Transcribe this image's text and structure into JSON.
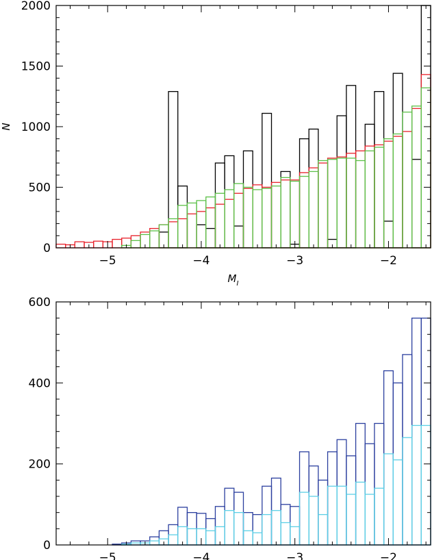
{
  "chart_data": [
    {
      "type": "bar",
      "style": "step-histogram",
      "title": "",
      "xlabel": "M",
      "xlabel_sub": "I",
      "ylabel": "N",
      "xlim": [
        -5.55,
        -1.55
      ],
      "ylim": [
        0,
        2000
      ],
      "xticks": [
        -5,
        -4,
        -3,
        -2
      ],
      "xtick_labels": [
        "−5",
        "−4",
        "−3",
        "−2"
      ],
      "yticks": [
        0,
        500,
        1000,
        1500,
        2000
      ],
      "ytick_labels": [
        "0",
        "500",
        "1000",
        "1500",
        "2000"
      ],
      "bin_edges_start": -5.55,
      "bin_width": 0.1,
      "series": [
        {
          "color": "#000000",
          "values": [
            0,
            0,
            0,
            0,
            0,
            0,
            0,
            0,
            0,
            0,
            0,
            130,
            1290,
            510,
            0,
            190,
            160,
            700,
            760,
            180,
            800,
            0,
            1110,
            0,
            630,
            30,
            900,
            980,
            0,
            70,
            1090,
            1340,
            0,
            1020,
            1290,
            220,
            1440,
            0,
            730,
            2000
          ]
        },
        {
          "color": "#e8202a",
          "values": [
            30,
            25,
            50,
            45,
            55,
            50,
            70,
            80,
            100,
            130,
            160,
            190,
            215,
            240,
            280,
            300,
            330,
            360,
            400,
            450,
            490,
            520,
            500,
            540,
            560,
            560,
            620,
            660,
            700,
            740,
            750,
            780,
            800,
            840,
            850,
            880,
            920,
            960,
            1150,
            1430
          ]
        },
        {
          "color": "#5cc048",
          "values": [
            0,
            0,
            0,
            0,
            0,
            0,
            0,
            20,
            60,
            110,
            140,
            190,
            240,
            350,
            370,
            390,
            420,
            450,
            480,
            530,
            500,
            480,
            490,
            510,
            580,
            550,
            590,
            630,
            720,
            730,
            740,
            740,
            720,
            800,
            830,
            900,
            940,
            1120,
            1170,
            1320
          ]
        }
      ]
    },
    {
      "type": "bar",
      "style": "step-histogram",
      "title": "",
      "xlabel": "",
      "ylabel": "",
      "xlim": [
        -5.55,
        -1.55
      ],
      "ylim": [
        0,
        600
      ],
      "xticks": [
        -5,
        -4,
        -3,
        -2
      ],
      "xtick_labels": [
        "−5",
        "−4",
        "−3",
        "−2"
      ],
      "yticks": [
        0,
        200,
        400,
        600
      ],
      "ytick_labels": [
        "0",
        "200",
        "400",
        "600"
      ],
      "bin_edges_start": -5.55,
      "bin_width": 0.1,
      "series": [
        {
          "color": "#2a3e9e",
          "values": [
            0,
            0,
            0,
            0,
            0,
            0,
            2,
            5,
            10,
            10,
            20,
            35,
            50,
            93,
            80,
            78,
            65,
            95,
            140,
            130,
            80,
            75,
            145,
            165,
            100,
            95,
            230,
            195,
            160,
            230,
            260,
            220,
            300,
            250,
            300,
            430,
            400,
            470,
            560,
            560
          ]
        },
        {
          "color": "#5ccfe6",
          "values": [
            0,
            0,
            0,
            0,
            0,
            0,
            0,
            2,
            5,
            5,
            10,
            15,
            25,
            45,
            40,
            40,
            35,
            45,
            85,
            80,
            35,
            30,
            75,
            85,
            55,
            45,
            130,
            120,
            75,
            145,
            145,
            125,
            155,
            125,
            140,
            225,
            210,
            265,
            295,
            295
          ]
        }
      ]
    }
  ]
}
